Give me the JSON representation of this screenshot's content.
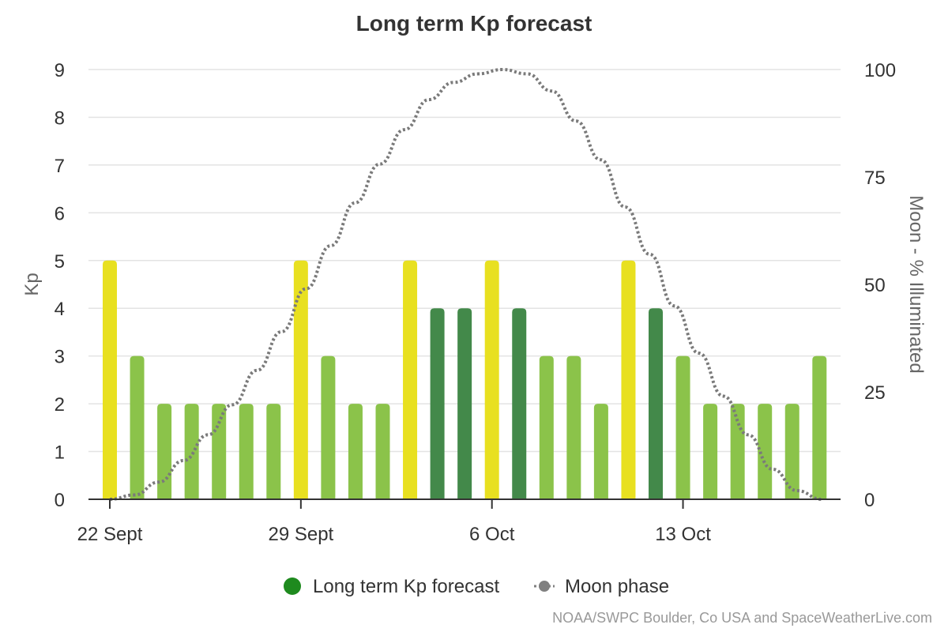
{
  "chart_data": {
    "type": "bar",
    "title": "Long term Kp forecast",
    "xlabel": "",
    "ylabel": "Kp",
    "ylabel_right": "Moon - % Illuminated",
    "ylim": [
      0,
      9
    ],
    "ylim_right": [
      0,
      100
    ],
    "yticks": [
      "0",
      "1",
      "2",
      "3",
      "4",
      "5",
      "6",
      "7",
      "8",
      "9"
    ],
    "yticks_right": [
      "0",
      "25",
      "50",
      "75",
      "100"
    ],
    "x_tick_labels": [
      {
        "label": "22 Sept",
        "index": 0
      },
      {
        "label": "29 Sept",
        "index": 7
      },
      {
        "label": "6 Oct",
        "index": 14
      },
      {
        "label": "13 Oct",
        "index": 21
      }
    ],
    "series": [
      {
        "name": "Long term Kp forecast",
        "type": "bar",
        "values": [
          5,
          3,
          2,
          2,
          2,
          2,
          2,
          5,
          3,
          2,
          2,
          5,
          4,
          4,
          5,
          4,
          3,
          3,
          2,
          5,
          4,
          3,
          2,
          2,
          2,
          2,
          3
        ],
        "color_scale": {
          "low": "#8bc34a",
          "4": "#43894a",
          "5": "#e8e020"
        }
      },
      {
        "name": "Moon phase",
        "type": "line",
        "values": [
          0,
          1,
          4,
          9,
          15,
          22,
          30,
          39,
          49,
          59,
          69,
          78,
          86,
          93,
          97,
          99,
          100,
          99,
          95,
          88,
          79,
          68,
          57,
          45,
          34,
          24,
          15,
          7,
          2,
          0
        ],
        "stroke": "#7a7a7a"
      }
    ],
    "legend": {
      "position": "bottom",
      "items": [
        {
          "label": "Long term Kp forecast",
          "marker": "circle",
          "color": "#1e8a1e"
        },
        {
          "label": "Moon phase",
          "marker": "dotted-line",
          "color": "#808080"
        }
      ]
    },
    "grid": true
  },
  "credit": "NOAA/SWPC Boulder, Co USA and SpaceWeatherLive.com"
}
